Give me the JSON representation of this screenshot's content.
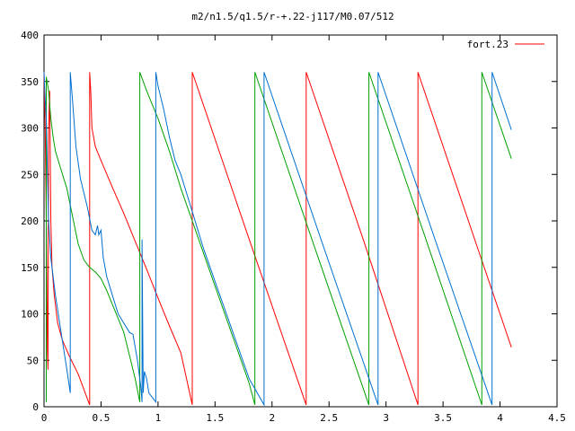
{
  "chart_data": {
    "type": "line",
    "title": "m2/n1.5/q1.5/r-+.22-j117/M0.07/512",
    "xlabel": "",
    "ylabel": "",
    "xlim": [
      0,
      4.5
    ],
    "ylim": [
      0,
      400
    ],
    "xticks": [
      0,
      0.5,
      1,
      1.5,
      2,
      2.5,
      3,
      3.5,
      4,
      4.5
    ],
    "xtick_labels": [
      "0",
      "0.5",
      "1",
      "1.5",
      "2",
      "2.5",
      "3",
      "3.5",
      "4",
      "4.5"
    ],
    "yticks": [
      0,
      50,
      100,
      150,
      200,
      250,
      300,
      350,
      400
    ],
    "ytick_labels": [
      "0",
      "50",
      "100",
      "150",
      "200",
      "250",
      "300",
      "350",
      "400"
    ],
    "grid": false,
    "legend": {
      "position": "top-right",
      "entries": [
        "fort.23"
      ]
    },
    "series": [
      {
        "name": "fort.23",
        "color": "#ff0000",
        "points": [
          [
            0.0,
            360
          ],
          [
            0.01,
            300
          ],
          [
            0.02,
            200
          ],
          [
            0.03,
            60
          ],
          [
            0.035,
            40
          ],
          [
            0.04,
            300
          ],
          [
            0.05,
            340
          ],
          [
            0.06,
            200
          ],
          [
            0.07,
            150
          ],
          [
            0.09,
            120
          ],
          [
            0.12,
            90
          ],
          [
            0.16,
            72
          ],
          [
            0.22,
            55
          ],
          [
            0.3,
            35
          ],
          [
            0.4,
            2
          ],
          [
            0.4,
            360
          ],
          [
            0.41,
            340
          ],
          [
            0.42,
            300
          ],
          [
            0.45,
            280
          ],
          [
            0.5,
            265
          ],
          [
            0.6,
            236
          ],
          [
            0.7,
            208
          ],
          [
            0.8,
            178
          ],
          [
            0.9,
            148
          ],
          [
            1.0,
            117
          ],
          [
            1.1,
            87
          ],
          [
            1.2,
            58
          ],
          [
            1.3,
            2
          ],
          [
            1.3,
            360
          ],
          [
            1.8,
            180
          ],
          [
            2.3,
            2
          ],
          [
            2.3,
            360
          ],
          [
            2.8,
            180
          ],
          [
            3.28,
            2
          ],
          [
            3.28,
            360
          ],
          [
            3.8,
            172
          ],
          [
            4.1,
            64
          ]
        ]
      },
      {
        "name": "",
        "color": "#00a000",
        "points": [
          [
            0.02,
            5
          ],
          [
            0.02,
            355
          ],
          [
            0.04,
            340
          ],
          [
            0.06,
            310
          ],
          [
            0.08,
            290
          ],
          [
            0.1,
            275
          ],
          [
            0.15,
            255
          ],
          [
            0.2,
            235
          ],
          [
            0.25,
            205
          ],
          [
            0.3,
            175
          ],
          [
            0.35,
            158
          ],
          [
            0.4,
            150
          ],
          [
            0.45,
            145
          ],
          [
            0.5,
            138
          ],
          [
            0.55,
            125
          ],
          [
            0.6,
            110
          ],
          [
            0.65,
            95
          ],
          [
            0.7,
            80
          ],
          [
            0.75,
            55
          ],
          [
            0.8,
            30
          ],
          [
            0.84,
            5
          ],
          [
            0.84,
            360
          ],
          [
            0.9,
            340
          ],
          [
            1.0,
            310
          ],
          [
            1.1,
            275
          ],
          [
            1.2,
            235
          ],
          [
            1.3,
            200
          ],
          [
            1.4,
            165
          ],
          [
            1.5,
            130
          ],
          [
            1.6,
            95
          ],
          [
            1.7,
            60
          ],
          [
            1.8,
            25
          ],
          [
            1.85,
            2
          ],
          [
            1.85,
            360
          ],
          [
            2.35,
            180
          ],
          [
            2.85,
            2
          ],
          [
            2.85,
            360
          ],
          [
            3.35,
            180
          ],
          [
            3.84,
            2
          ],
          [
            3.84,
            360
          ],
          [
            4.1,
            267
          ]
        ]
      },
      {
        "name": "",
        "color": "#0070d0",
        "points": [
          [
            0.0,
            360
          ],
          [
            0.01,
            330
          ],
          [
            0.02,
            310
          ],
          [
            0.03,
            250
          ],
          [
            0.04,
            200
          ],
          [
            0.06,
            160
          ],
          [
            0.1,
            120
          ],
          [
            0.15,
            80
          ],
          [
            0.2,
            40
          ],
          [
            0.23,
            15
          ],
          [
            0.23,
            360
          ],
          [
            0.25,
            330
          ],
          [
            0.28,
            280
          ],
          [
            0.32,
            245
          ],
          [
            0.38,
            215
          ],
          [
            0.42,
            190
          ],
          [
            0.45,
            185
          ],
          [
            0.47,
            195
          ],
          [
            0.48,
            185
          ],
          [
            0.5,
            190
          ],
          [
            0.52,
            160
          ],
          [
            0.55,
            140
          ],
          [
            0.6,
            120
          ],
          [
            0.65,
            100
          ],
          [
            0.7,
            90
          ],
          [
            0.75,
            80
          ],
          [
            0.78,
            78
          ],
          [
            0.82,
            50
          ],
          [
            0.85,
            20
          ],
          [
            0.86,
            5
          ],
          [
            0.86,
            180
          ],
          [
            0.87,
            15
          ],
          [
            0.88,
            38
          ],
          [
            0.9,
            30
          ],
          [
            0.92,
            15
          ],
          [
            0.95,
            10
          ],
          [
            0.98,
            5
          ],
          [
            0.98,
            360
          ],
          [
            1.0,
            345
          ],
          [
            1.05,
            320
          ],
          [
            1.1,
            290
          ],
          [
            1.15,
            265
          ],
          [
            1.2,
            250
          ],
          [
            1.3,
            210
          ],
          [
            1.4,
            170
          ],
          [
            1.5,
            135
          ],
          [
            1.6,
            100
          ],
          [
            1.7,
            65
          ],
          [
            1.8,
            30
          ],
          [
            1.93,
            2
          ],
          [
            1.93,
            360
          ],
          [
            2.43,
            180
          ],
          [
            2.93,
            2
          ],
          [
            2.93,
            360
          ],
          [
            3.43,
            180
          ],
          [
            3.93,
            2
          ],
          [
            3.93,
            360
          ],
          [
            4.1,
            298
          ]
        ]
      }
    ]
  }
}
